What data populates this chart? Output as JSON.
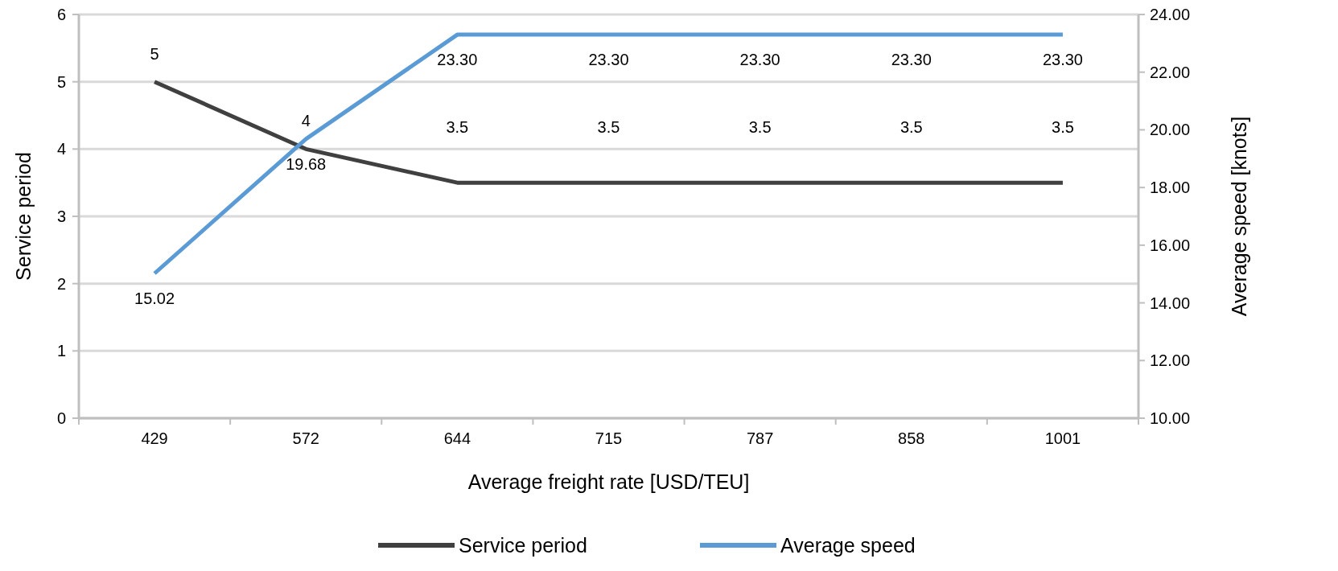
{
  "chart_data": {
    "type": "line",
    "xlabel": "Average freight rate [USD/TEU]",
    "ylabel": "Service period",
    "y2label": "Average speed [knots]",
    "categories": [
      "429",
      "572",
      "644",
      "715",
      "787",
      "858",
      "1001"
    ],
    "series": [
      {
        "name": "Service period",
        "color": "#404040",
        "values": [
          5,
          4,
          3.5,
          3.5,
          3.5,
          3.5,
          3.5
        ],
        "value_labels": [
          "5",
          "4",
          "3.5",
          "3.5",
          "3.5",
          "3.5",
          "3.5"
        ]
      },
      {
        "name": "Average speed",
        "color": "#5b9bd5",
        "axis": "y2",
        "values": [
          15.02,
          19.68,
          23.3,
          23.3,
          23.3,
          23.3,
          23.3
        ],
        "value_labels": [
          "15.02",
          "19.68",
          "23.30",
          "23.30",
          "23.30",
          "23.30",
          "23.30"
        ]
      }
    ],
    "ylim": [
      0,
      6
    ],
    "yticks": [
      0,
      1,
      2,
      3,
      4,
      5,
      6
    ],
    "y2lim": [
      10,
      24
    ],
    "y2ticks": [
      {
        "value": 10,
        "label": "10.00"
      },
      {
        "value": 12,
        "label": "12.00"
      },
      {
        "value": 14,
        "label": "14.00"
      },
      {
        "value": 16,
        "label": "16.00"
      },
      {
        "value": 18,
        "label": "18.00"
      },
      {
        "value": 20,
        "label": "20.00"
      },
      {
        "value": 22,
        "label": "22.00"
      },
      {
        "value": 24,
        "label": "24.00"
      }
    ],
    "grid": "y",
    "legend": "bottom",
    "marker": "none",
    "line_style": "solid"
  }
}
